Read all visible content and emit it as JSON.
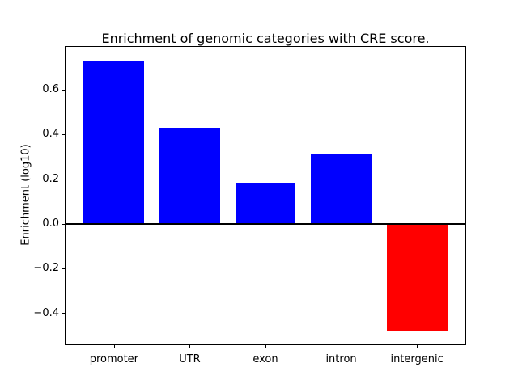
{
  "chart_data": {
    "type": "bar",
    "title": "Enrichment of genomic categories with CRE score.",
    "ylabel": "Enrichment (log10)",
    "xlabel": "",
    "categories": [
      "promoter",
      "UTR",
      "exon",
      "intron",
      "intergenic"
    ],
    "values": [
      0.73,
      0.43,
      0.18,
      0.31,
      -0.48
    ],
    "bar_colors": [
      "#0000ff",
      "#0000ff",
      "#0000ff",
      "#0000ff",
      "#ff0000"
    ],
    "positive_color": "#0000ff",
    "negative_color": "#ff0000",
    "yticks": [
      0.6,
      0.4,
      0.2,
      0.0,
      -0.2,
      -0.4
    ],
    "ytick_labels": [
      "0.6",
      "0.4",
      "0.2",
      "0.0",
      "−0.2",
      "−0.4"
    ],
    "ylim": [
      -0.54,
      0.79
    ],
    "xlim": [
      -0.64,
      4.64
    ],
    "bar_width": 0.8,
    "zero_line": true,
    "grid": false,
    "legend_position": "none",
    "background_color": "#ffffff",
    "axis_color": "#000000"
  }
}
